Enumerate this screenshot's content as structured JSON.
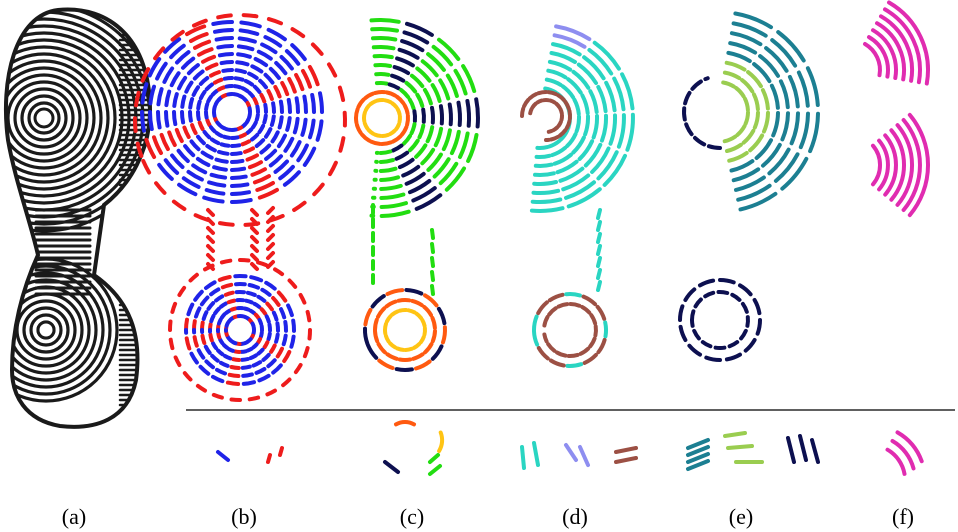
{
  "figure": {
    "panel_labels": [
      "(a)",
      "(b)",
      "(c)",
      "(d)",
      "(e)",
      "(f)"
    ]
  },
  "colors": {
    "outline": "#1a1a1a",
    "b_primary": "#1f23e8",
    "b_secondary": "#ee1c1c",
    "green": "#22dd11",
    "lime": "#9acd50",
    "navy": "#0d1050",
    "orange": "#ff5a10",
    "yellow": "#ffc414",
    "teal": "#2ad5c2",
    "lavender": "#8e8ef0",
    "brown": "#9c5044",
    "petrol": "#1c7f92",
    "magenta": "#e02cb0"
  }
}
